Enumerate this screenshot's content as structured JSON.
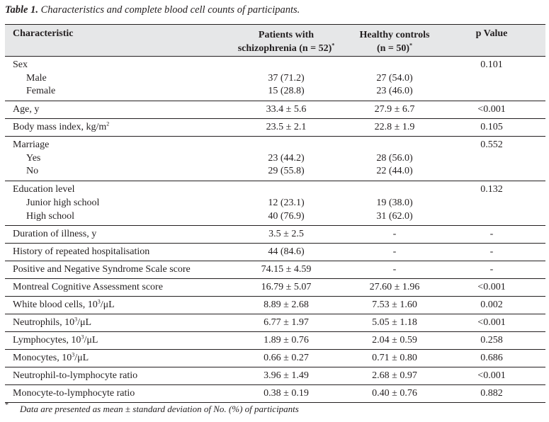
{
  "caption": {
    "label": "Table 1.",
    "text": " Characteristics and complete blood cell counts of participants."
  },
  "header": {
    "col1": "Characteristic",
    "col2_line1": "Patients with",
    "col2_line2": "schizophrenia (n = 52)",
    "col2_mark": "*",
    "col3_line1": "Healthy controls",
    "col3_line2": "(n = 50)",
    "col3_mark": "*",
    "col4": "p Value"
  },
  "rows": {
    "sex": {
      "label": "Sex",
      "p": "0.101",
      "male": {
        "label": "Male",
        "patients": "37 (71.2)",
        "controls": "27 (54.0)"
      },
      "female": {
        "label": "Female",
        "patients": "15 (28.8)",
        "controls": "23 (46.0)"
      }
    },
    "age": {
      "label": "Age, y",
      "patients": "33.4 ± 5.6",
      "controls": "27.9 ± 6.7",
      "p": "<0.001"
    },
    "bmi": {
      "label": "Body mass index, kg/m",
      "unit_sup": "2",
      "patients": "23.5 ± 2.1",
      "controls": "22.8 ± 1.9",
      "p": "0.105"
    },
    "marriage": {
      "label": "Marriage",
      "p": "0.552",
      "yes": {
        "label": "Yes",
        "patients": "23 (44.2)",
        "controls": "28 (56.0)"
      },
      "no": {
        "label": "No",
        "patients": "29 (55.8)",
        "controls": "22 (44.0)"
      }
    },
    "education": {
      "label": "Education level",
      "p": "0.132",
      "junior": {
        "label": "Junior high school",
        "patients": "12 (23.1)",
        "controls": "19 (38.0)"
      },
      "high": {
        "label": "High school",
        "patients": "40 (76.9)",
        "controls": "31 (62.0)"
      }
    },
    "duration": {
      "label": "Duration of illness, y",
      "patients": "3.5 ± 2.5",
      "controls": "-",
      "p": "-"
    },
    "hospital": {
      "label": "History of repeated hospitalisation",
      "patients": "44 (84.6)",
      "controls": "-",
      "p": "-"
    },
    "panss": {
      "label": "Positive and Negative Syndrome Scale score",
      "patients": "74.15 ± 4.59",
      "controls": "-",
      "p": "-"
    },
    "moca": {
      "label": "Montreal Cognitive Assessment score",
      "patients": "16.79 ± 5.07",
      "controls": "27.60 ± 1.96",
      "p": "<0.001"
    },
    "wbc": {
      "label_a": "White blood cells, 10",
      "sup": "3",
      "label_b": "/μL",
      "patients": "8.89 ± 2.68",
      "controls": "7.53 ± 1.60",
      "p": "0.002"
    },
    "neut": {
      "label_a": "Neutrophils, 10",
      "sup": "3",
      "label_b": "/μL",
      "patients": "6.77 ± 1.97",
      "controls": "5.05 ± 1.18",
      "p": "<0.001"
    },
    "lymph": {
      "label_a": "Lymphocytes, 10",
      "sup": "3",
      "label_b": "/μL",
      "patients": "1.89 ± 0.76",
      "controls": "2.04 ± 0.59",
      "p": "0.258"
    },
    "mono": {
      "label_a": "Monocytes, 10",
      "sup": "3",
      "label_b": "/μL",
      "patients": "0.66 ± 0.27",
      "controls": "0.71 ± 0.80",
      "p": "0.686"
    },
    "nlr": {
      "label": "Neutrophil-to-lymphocyte ratio",
      "patients": "3.96 ± 1.49",
      "controls": "2.68 ± 0.97",
      "p": "<0.001"
    },
    "mlr": {
      "label": "Monocyte-to-lymphocyte ratio",
      "patients": "0.38 ± 0.19",
      "controls": "0.40 ± 0.76",
      "p": "0.882"
    }
  },
  "footnote": {
    "mark": "*",
    "text": "Data are presented as mean ± standard deviation of No. (%) of participants"
  }
}
